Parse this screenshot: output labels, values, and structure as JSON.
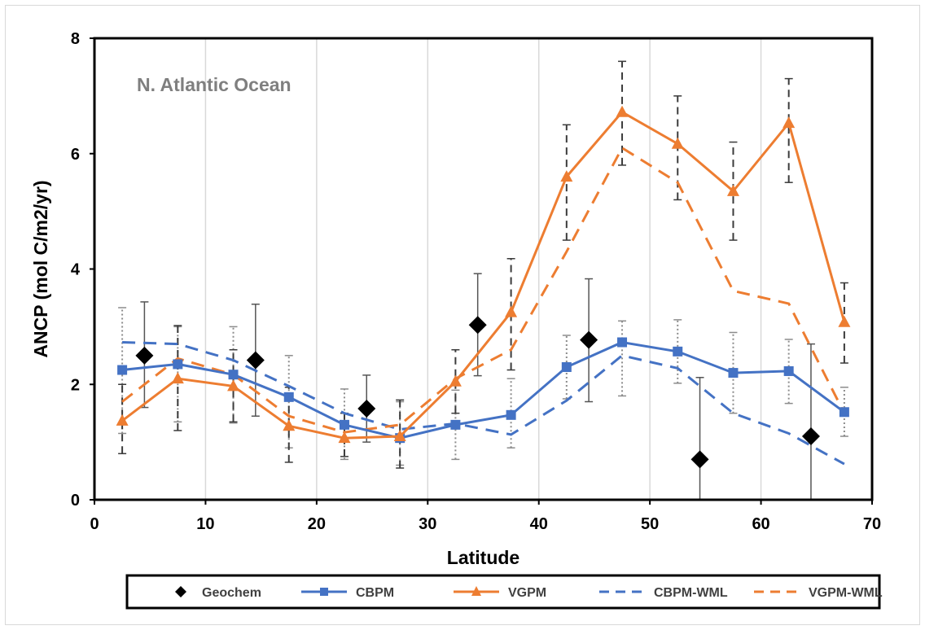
{
  "chart_data": {
    "type": "line",
    "annotation": "N. Atlantic Ocean",
    "xlabel": "Latitude",
    "ylabel": "ANCP (mol C/m2/yr)",
    "xlim": [
      0,
      70
    ],
    "ylim": [
      0,
      8
    ],
    "x_ticks": [
      "0",
      "10",
      "20",
      "30",
      "40",
      "50",
      "60",
      "70"
    ],
    "y_ticks": [
      "0",
      "2",
      "4",
      "6",
      "8"
    ],
    "grid": "vertical",
    "legend_position": "bottom",
    "colors": {
      "blue": "#4472c4",
      "orange": "#ed7d31",
      "black": "#000000",
      "grid": "#d9d9d9"
    },
    "series": [
      {
        "name": "Geochem",
        "kind": "scatter-diamond",
        "color": "#000000",
        "x": [
          4.5,
          14.5,
          24.5,
          34.5,
          44.5,
          54.5,
          64.5
        ],
        "values": [
          2.5,
          2.42,
          1.58,
          3.03,
          2.77,
          0.7,
          1.1
        ],
        "error_low": [
          1.6,
          1.45,
          1.0,
          2.15,
          1.7,
          0.0,
          0.0
        ],
        "error_high": [
          3.43,
          3.39,
          2.16,
          3.92,
          3.83,
          2.12,
          2.7
        ]
      },
      {
        "name": "CBPM",
        "kind": "line-square",
        "color": "#4472c4",
        "x": [
          2.5,
          7.5,
          12.5,
          17.5,
          22.5,
          27.5,
          32.5,
          37.5,
          42.5,
          47.5,
          52.5,
          57.5,
          62.5,
          67.5
        ],
        "values": [
          2.25,
          2.35,
          2.17,
          1.78,
          1.3,
          1.07,
          1.3,
          1.47,
          2.3,
          2.73,
          2.57,
          2.2,
          2.23,
          1.52
        ],
        "error_low": [
          1.15,
          1.35,
          1.33,
          0.9,
          0.7,
          0.6,
          0.7,
          0.9,
          1.75,
          1.8,
          2.02,
          1.5,
          1.67,
          1.1
        ],
        "error_high": [
          3.33,
          3.0,
          3.0,
          2.5,
          1.92,
          1.7,
          1.9,
          2.1,
          2.85,
          3.1,
          3.12,
          2.9,
          2.78,
          1.95
        ]
      },
      {
        "name": "VGPM",
        "kind": "line-triangle",
        "color": "#ed7d31",
        "x": [
          2.5,
          7.5,
          12.5,
          17.5,
          22.5,
          27.5,
          32.5,
          37.5,
          42.5,
          47.5,
          52.5,
          57.5,
          62.5,
          67.5
        ],
        "values": [
          1.37,
          2.1,
          1.97,
          1.28,
          1.07,
          1.1,
          2.05,
          3.25,
          5.6,
          6.72,
          6.17,
          5.35,
          6.53,
          3.08
        ],
        "error_low": [
          0.8,
          1.2,
          1.35,
          0.65,
          0.75,
          0.55,
          1.5,
          2.25,
          4.5,
          5.8,
          5.2,
          4.5,
          5.5,
          2.37
        ],
        "error_high": [
          2.0,
          3.02,
          2.6,
          1.95,
          1.5,
          1.73,
          2.6,
          4.18,
          6.5,
          7.6,
          7.0,
          6.2,
          7.3,
          3.76
        ]
      },
      {
        "name": "CBPM-WML",
        "kind": "dashed-line",
        "color": "#4472c4",
        "x": [
          2.5,
          7.5,
          12.5,
          17.5,
          22.5,
          27.5,
          32.5,
          37.5,
          42.5,
          47.5,
          52.5,
          57.5,
          62.5,
          67.5
        ],
        "values": [
          2.73,
          2.7,
          2.42,
          1.97,
          1.5,
          1.22,
          1.32,
          1.13,
          1.72,
          2.5,
          2.28,
          1.5,
          1.15,
          0.62
        ]
      },
      {
        "name": "VGPM-WML",
        "kind": "dashed-line",
        "color": "#ed7d31",
        "x": [
          2.5,
          7.5,
          12.5,
          17.5,
          22.5,
          27.5,
          32.5,
          37.5,
          42.5,
          47.5,
          52.5,
          57.5,
          62.5,
          67.5
        ],
        "values": [
          1.7,
          2.45,
          2.17,
          1.45,
          1.17,
          1.3,
          2.1,
          2.6,
          4.3,
          6.1,
          5.5,
          3.62,
          3.4,
          1.5
        ]
      }
    ]
  }
}
